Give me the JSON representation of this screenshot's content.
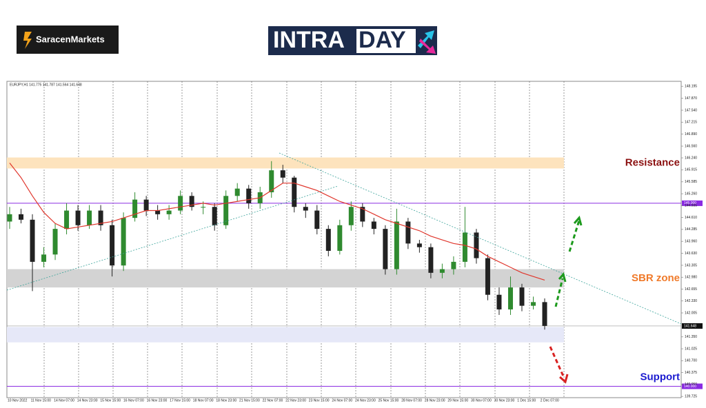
{
  "brand": "SaracenMarkets",
  "banner": {
    "left": "INTRA",
    "right": "DAY"
  },
  "chart_data": {
    "type": "candlestick",
    "title": "EURJPY,H1  141.775 141.787 141.564 141.648",
    "categories": [
      "10 Nov 2022",
      "11 Nov 15:00",
      "14 Nov 07:00",
      "14 Nov 23:00",
      "15 Nov 15:00",
      "16 Nov 07:00",
      "16 Nov 23:00",
      "17 Nov 15:00",
      "18 Nov 07:00",
      "18 Nov 23:00",
      "21 Nov 15:00",
      "22 Nov 07:00",
      "22 Nov 23:00",
      "23 Nov 15:00",
      "24 Nov 07:00",
      "24 Nov 23:00",
      "25 Nov 15:00",
      "28 Nov 07:00",
      "28 Nov 23:00",
      "29 Nov 15:00",
      "30 Nov 07:00",
      "30 Nov 23:00",
      "1 Dec 15:00",
      "2 Dec 07:00"
    ],
    "open": [
      144.5,
      144.7,
      144.55,
      143.4,
      143.6,
      144.3,
      144.8,
      144.4,
      144.8,
      144.4,
      143.3,
      144.6,
      145.1,
      144.8,
      144.7,
      144.8,
      145.2,
      144.9,
      144.9,
      144.4,
      145.2,
      145.4,
      145.0,
      145.3,
      145.9,
      145.7,
      144.9,
      144.8,
      144.3,
      143.7,
      144.4,
      144.9,
      144.5,
      144.3,
      143.2,
      144.5,
      143.9,
      143.8,
      143.1,
      143.2,
      143.4,
      144.2,
      143.5,
      142.5,
      142.1,
      142.7,
      142.2,
      142.3
    ],
    "high": [
      144.9,
      144.85,
      144.7,
      143.8,
      144.45,
      145.0,
      144.95,
      144.95,
      144.95,
      144.55,
      144.75,
      145.3,
      145.2,
      144.95,
      144.95,
      145.35,
      145.3,
      145.05,
      145.0,
      145.35,
      145.55,
      145.5,
      145.45,
      146.15,
      146.05,
      145.75,
      145.0,
      144.95,
      144.4,
      144.55,
      145.05,
      145.0,
      144.6,
      144.4,
      144.85,
      144.6,
      144.0,
      143.9,
      143.35,
      143.55,
      144.9,
      144.3,
      143.6,
      142.7,
      143.0,
      142.8,
      142.45,
      142.4
    ],
    "low": [
      144.3,
      144.45,
      142.6,
      143.25,
      143.45,
      144.15,
      144.25,
      144.3,
      144.25,
      143.0,
      143.15,
      144.5,
      144.65,
      144.55,
      144.55,
      144.7,
      144.8,
      144.7,
      144.25,
      144.3,
      145.05,
      144.85,
      144.85,
      145.15,
      145.55,
      144.75,
      144.6,
      144.15,
      143.55,
      143.6,
      144.25,
      144.35,
      144.15,
      143.05,
      143.05,
      143.75,
      143.65,
      142.95,
      142.95,
      143.05,
      143.25,
      143.35,
      142.35,
      141.95,
      141.95,
      142.05,
      142.1,
      141.55
    ],
    "close": [
      144.7,
      144.55,
      143.4,
      143.6,
      144.3,
      144.8,
      144.4,
      144.8,
      144.4,
      143.3,
      144.6,
      145.1,
      144.8,
      144.7,
      144.8,
      145.2,
      144.9,
      144.9,
      144.4,
      145.2,
      145.4,
      145.0,
      145.3,
      145.9,
      145.7,
      144.9,
      144.8,
      144.3,
      143.7,
      144.4,
      144.9,
      144.5,
      144.3,
      143.2,
      144.5,
      143.9,
      143.8,
      143.1,
      143.2,
      143.4,
      144.2,
      143.5,
      142.5,
      142.1,
      142.7,
      142.2,
      142.3,
      141.65
    ],
    "up_color": "#2f8a2f",
    "down_color": "#222222",
    "ma": {
      "color": "#e0362c",
      "values": [
        146.1,
        145.7,
        145.2,
        144.75,
        144.45,
        144.3,
        144.35,
        144.4,
        144.45,
        144.5,
        144.6,
        144.7,
        144.8,
        144.8,
        144.85,
        144.9,
        144.95,
        145.0,
        144.95,
        145.0,
        145.05,
        145.1,
        145.15,
        145.35,
        145.55,
        145.55,
        145.45,
        145.35,
        145.2,
        145.05,
        144.95,
        144.85,
        144.7,
        144.55,
        144.45,
        144.35,
        144.25,
        144.1,
        144.0,
        143.9,
        143.85,
        143.75,
        143.55,
        143.4,
        143.25,
        143.1,
        143.0,
        142.9
      ]
    },
    "ylim": [
      139.69,
      148.33
    ],
    "yticks": [
      148.195,
      {
        "value": 147.87,
        "label": "147.870"
      },
      {
        "value": 147.54,
        "label": "147.540"
      },
      147.215,
      {
        "value": 146.89,
        "label": "146.890"
      },
      {
        "value": 146.56,
        "label": "146.560"
      },
      {
        "value": 146.24,
        "label": "146.240"
      },
      145.915,
      145.585,
      {
        "value": 145.26,
        "label": "145.260"
      },
      144.935,
      {
        "value": 144.61,
        "label": "144.610"
      },
      144.285,
      {
        "value": 143.96,
        "label": "143.960"
      },
      {
        "value": 143.63,
        "label": "143.630"
      },
      143.305,
      {
        "value": 142.98,
        "label": "142.980"
      },
      142.655,
      {
        "value": 142.33,
        "label": "142.330"
      },
      142.005,
      {
        "value": 141.35,
        "label": "141.350"
      },
      141.025,
      {
        "value": 140.7,
        "label": "140.700"
      },
      140.375,
      {
        "value": 140.05,
        "label": "140.050"
      },
      139.725
    ],
    "levels": [
      {
        "value": 145.0,
        "label": "145.000",
        "color": "#8a2be2"
      },
      {
        "value": 140.0,
        "label": "140.000",
        "color": "#8a2be2"
      }
    ],
    "current": {
      "value": 141.648,
      "color": "#999999"
    },
    "zones": [
      {
        "range": [
          145.95,
          146.25
        ],
        "color": "#fde3bd",
        "text": "Resistance",
        "text_color": "#8b1010"
      },
      {
        "range": [
          142.7,
          143.2
        ],
        "color": "#d3d3d3",
        "text": "SBR zone",
        "text_color": "#f07a2a"
      },
      {
        "range": [
          141.2,
          141.62
        ],
        "color": "#e6e8f8"
      }
    ],
    "support": {
      "text": "Support",
      "text_color": "#1b1bd0"
    }
  }
}
